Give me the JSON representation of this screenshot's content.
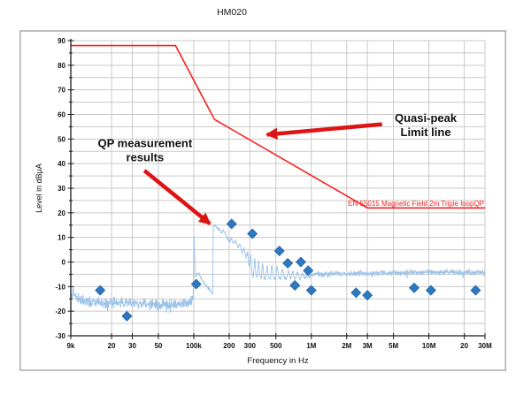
{
  "title": "HM020",
  "colors": {
    "trace": "#9CC3E8",
    "marker_fill": "#2E78BF",
    "marker_edge": "#2569AB",
    "limit_line": "#FB2020",
    "arrow": "#DD1414",
    "grid": "#C9C9C9",
    "axis": "#1A1A1A",
    "annotation_text": "#111111",
    "figure_border": "#ABABAB"
  },
  "chart_data": {
    "type": "line",
    "title": "HM020",
    "xlabel": "Frequency in Hz",
    "ylabel": "Level in dBμA",
    "x_scale": "log",
    "x_range": [
      9000,
      30000000
    ],
    "y_range": [
      -30,
      90
    ],
    "grid": true,
    "x_ticks": [
      {
        "f": 9000,
        "label": "9k"
      },
      {
        "f": 20000,
        "label": "20"
      },
      {
        "f": 30000,
        "label": "30"
      },
      {
        "f": 50000,
        "label": "50"
      },
      {
        "f": 100000,
        "label": "100k"
      },
      {
        "f": 200000,
        "label": "200"
      },
      {
        "f": 300000,
        "label": "300"
      },
      {
        "f": 500000,
        "label": "500"
      },
      {
        "f": 1000000,
        "label": "1M"
      },
      {
        "f": 2000000,
        "label": "2M"
      },
      {
        "f": 3000000,
        "label": "3M"
      },
      {
        "f": 5000000,
        "label": "5M"
      },
      {
        "f": 10000000,
        "label": "10M"
      },
      {
        "f": 20000000,
        "label": "20"
      },
      {
        "f": 30000000,
        "label": "30M"
      }
    ],
    "y_ticks": [
      90,
      80,
      70,
      60,
      50,
      40,
      30,
      20,
      10,
      0,
      -10,
      -20,
      -30
    ],
    "y_minor_step": 5,
    "limit_line": {
      "name": "Quasi-peak limit",
      "label": "EN 55015 Magnetic Field  2m Triple loopQP",
      "label_anchor": {
        "f": 29500000,
        "dB": 22.9
      },
      "points": [
        {
          "f": 9000,
          "dB": 88
        },
        {
          "f": 70000,
          "dB": 88
        },
        {
          "f": 150000,
          "dB": 58
        },
        {
          "f": 3000000,
          "dB": 22
        },
        {
          "f": 30000000,
          "dB": 22
        }
      ]
    },
    "qp_points": {
      "name": "QP measurement results",
      "marker": "diamond",
      "points": [
        {
          "f": 16000,
          "dB": -11.5
        },
        {
          "f": 27000,
          "dB": -22
        },
        {
          "f": 105000,
          "dB": -9
        },
        {
          "f": 210000,
          "dB": 15.5
        },
        {
          "f": 315000,
          "dB": 11.5
        },
        {
          "f": 535000,
          "dB": 4.5
        },
        {
          "f": 630000,
          "dB": -0.5
        },
        {
          "f": 725000,
          "dB": -9.5
        },
        {
          "f": 815000,
          "dB": 0
        },
        {
          "f": 940000,
          "dB": -3.5
        },
        {
          "f": 1000000,
          "dB": -11.5
        },
        {
          "f": 2400000,
          "dB": -12.5
        },
        {
          "f": 3000000,
          "dB": -13.5
        },
        {
          "f": 7500000,
          "dB": -10.5
        },
        {
          "f": 10400000,
          "dB": -11.5
        },
        {
          "f": 25000000,
          "dB": -11.5
        }
      ]
    },
    "trace": {
      "name": "measured spectrum trace",
      "samples": 1500,
      "noise_regions": [
        {
          "f0": 9000,
          "f1": 99000,
          "amp": 2.8
        },
        {
          "f0": 99000,
          "f1": 146000,
          "amp": 0.7
        },
        {
          "f0": 146000,
          "f1": 295000,
          "amp": 0.5
        },
        {
          "f0": 295000,
          "f1": 1050000,
          "amp": 0.7
        },
        {
          "f0": 1050000,
          "f1": 30000000,
          "amp": 1.4
        }
      ],
      "envelope": [
        [
          9000,
          -14.5
        ],
        [
          9500,
          -11.5
        ],
        [
          10000,
          -15
        ],
        [
          12000,
          -16
        ],
        [
          20000,
          -16.5
        ],
        [
          30000,
          -17
        ],
        [
          40000,
          -17
        ],
        [
          60000,
          -17.5
        ],
        [
          80000,
          -17
        ],
        [
          95000,
          -16
        ],
        [
          99000,
          -15
        ],
        [
          100500,
          12.5
        ],
        [
          101500,
          3
        ],
        [
          102500,
          -3
        ],
        [
          104000,
          -6
        ],
        [
          107000,
          -5
        ],
        [
          110000,
          -4.5
        ],
        [
          115000,
          -6.5
        ],
        [
          122000,
          -8.5
        ],
        [
          130000,
          -10
        ],
        [
          138000,
          -11.5
        ],
        [
          144000,
          -13
        ],
        [
          145500,
          -13.5
        ],
        [
          146000,
          14.5
        ],
        [
          152000,
          15
        ],
        [
          158000,
          14
        ],
        [
          166000,
          13
        ],
        [
          172000,
          12
        ],
        [
          178000,
          13
        ],
        [
          186000,
          11.5
        ],
        [
          194000,
          9.5
        ],
        [
          202000,
          8
        ],
        [
          210000,
          9.8
        ],
        [
          218000,
          7.5
        ],
        [
          228000,
          8.8
        ],
        [
          238000,
          5.5
        ],
        [
          248000,
          7.5
        ],
        [
          258000,
          3.5
        ],
        [
          268000,
          6
        ],
        [
          278000,
          1.5
        ],
        [
          288000,
          4.5
        ],
        [
          295000,
          -2
        ],
        [
          305000,
          3.5
        ],
        [
          312000,
          -4
        ],
        [
          322000,
          -6
        ],
        [
          330000,
          2
        ],
        [
          338000,
          -5
        ],
        [
          348000,
          -6.5
        ],
        [
          356000,
          1
        ],
        [
          365000,
          -5.5
        ],
        [
          375000,
          -7
        ],
        [
          385000,
          0
        ],
        [
          395000,
          -6
        ],
        [
          408000,
          -7
        ],
        [
          420000,
          -0.5
        ],
        [
          432000,
          -6.5
        ],
        [
          448000,
          -7
        ],
        [
          462000,
          -1
        ],
        [
          478000,
          -6.5
        ],
        [
          495000,
          -7
        ],
        [
          512000,
          -1.5
        ],
        [
          530000,
          -6.5
        ],
        [
          550000,
          -7
        ],
        [
          570000,
          -2.5
        ],
        [
          590000,
          -6.5
        ],
        [
          615000,
          -7
        ],
        [
          640000,
          -3
        ],
        [
          665000,
          -7
        ],
        [
          695000,
          -3.5
        ],
        [
          725000,
          -7
        ],
        [
          760000,
          -4
        ],
        [
          800000,
          -7
        ],
        [
          840000,
          -4.5
        ],
        [
          880000,
          -6.5
        ],
        [
          920000,
          -5
        ],
        [
          960000,
          -6.5
        ],
        [
          1000000,
          -5
        ],
        [
          1050000,
          -5
        ],
        [
          2000000,
          -4.6
        ],
        [
          5000000,
          -4.4
        ],
        [
          10000000,
          -4.2
        ],
        [
          30000000,
          -4.2
        ]
      ]
    },
    "annotations": {
      "qp": {
        "line1": "QP measurement",
        "line2": "results",
        "text_anchor": {
          "f": 38500,
          "dB": 45.5
        },
        "arrow_tail": {
          "f": 38000,
          "dB": 37.2
        },
        "arrow_tip": {
          "f": 137000,
          "dB": 15.6
        }
      },
      "limit": {
        "line1": "Quasi-peak",
        "line2": "Limit line",
        "text_anchor": {
          "f": 9400000,
          "dB": 55.6
        },
        "arrow_tail": {
          "f": 4000000,
          "dB": 56.0
        },
        "arrow_tip": {
          "f": 420000,
          "dB": 51.8
        }
      }
    }
  }
}
